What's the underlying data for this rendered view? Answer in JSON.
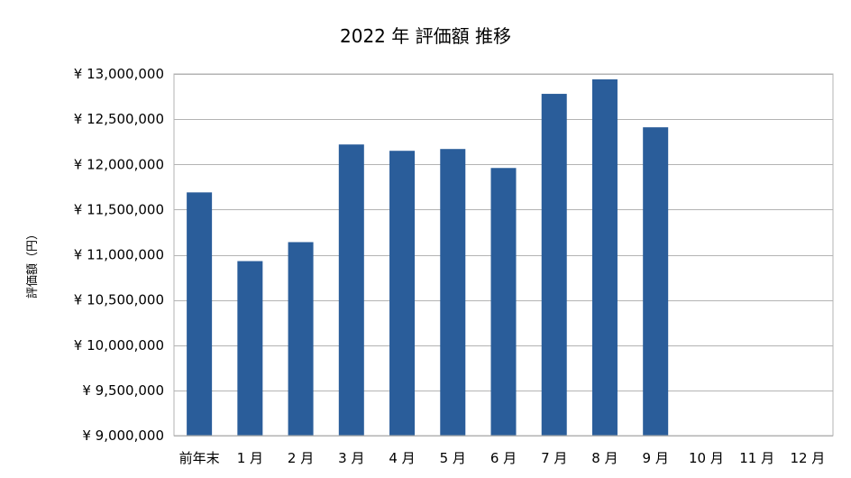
{
  "chart_data": {
    "type": "bar",
    "title": "2022 年 評価額 推移",
    "xlabel": "",
    "ylabel": "評価額（円）",
    "categories": [
      "前年末",
      "1 月",
      "2 月",
      "3 月",
      "4 月",
      "5 月",
      "6 月",
      "7 月",
      "8 月",
      "9 月",
      "10 月",
      "11 月",
      "12 月"
    ],
    "values": [
      11690000,
      10930000,
      11140000,
      12220000,
      12150000,
      12170000,
      11960000,
      12780000,
      12940000,
      12410000,
      null,
      null,
      null
    ],
    "ylim": [
      9000000,
      13000000
    ],
    "yticks": [
      9000000,
      9500000,
      10000000,
      10500000,
      11000000,
      11500000,
      12000000,
      12500000,
      13000000
    ],
    "ytick_labels": [
      "¥ 9,000,000",
      "¥ 9,500,000",
      "¥ 10,000,000",
      "¥ 10,500,000",
      "¥ 11,000,000",
      "¥ 11,500,000",
      "¥ 12,000,000",
      "¥ 12,500,000",
      "¥ 13,000,000"
    ],
    "grid": true,
    "legend": "none",
    "bar_color": "#2a5d9a"
  }
}
